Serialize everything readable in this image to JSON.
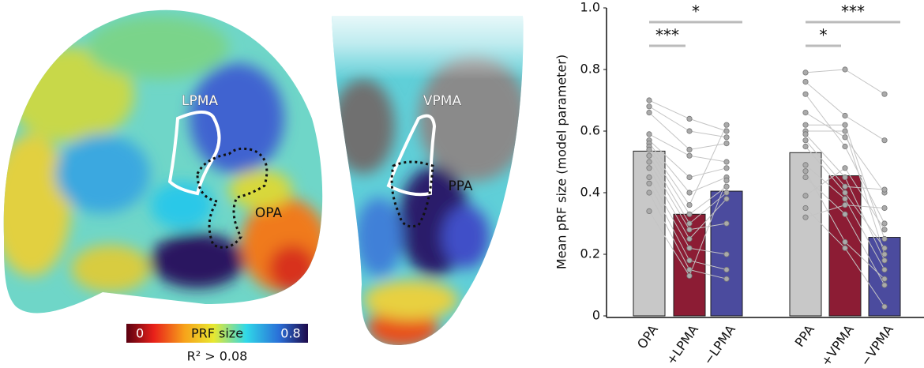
{
  "brain_maps": {
    "labels": {
      "left": [
        "LPMA",
        "OPA"
      ],
      "right": [
        "VPMA",
        "PPA"
      ]
    },
    "colorbar": {
      "title": "PRF size",
      "lim": [
        0,
        0.8
      ],
      "threshold": "R² > 0.08"
    }
  },
  "chart_data": {
    "type": "bar",
    "ylabel": "Mean pRF size (model parameter)",
    "ylim": [
      0,
      1
    ],
    "yticks": [
      0,
      0.2,
      0.4,
      0.6,
      0.8,
      {
        "value": 1,
        "label": "1.0"
      }
    ],
    "colors": [
      "#c8c8c8",
      "#8c1c34",
      "#4b4b9e"
    ],
    "groups": [
      {
        "categories": [
          "OPA",
          "+LPMA",
          "−LPMA"
        ],
        "values": [
          0.535,
          0.33,
          0.405
        ],
        "significance": [
          "*",
          "***"
        ],
        "points": [
          [
            0.7,
            0.68,
            0.66,
            0.59,
            0.57,
            0.56,
            0.55,
            0.54,
            0.52,
            0.5,
            0.48,
            0.45,
            0.43,
            0.4,
            0.34
          ],
          [
            0.64,
            0.6,
            0.54,
            0.52,
            0.45,
            0.4,
            0.36,
            0.33,
            0.3,
            0.28,
            0.25,
            0.22,
            0.18,
            0.15,
            0.13
          ],
          [
            0.6,
            0.58,
            0.56,
            0.5,
            0.48,
            0.45,
            0.62,
            0.42,
            0.4,
            0.3,
            0.38,
            0.2,
            0.15,
            0.12,
            0.44
          ]
        ]
      },
      {
        "categories": [
          "PPA",
          "+VPMA",
          "−VPMA"
        ],
        "values": [
          0.53,
          0.455,
          0.255
        ],
        "significance": [
          "***",
          "*"
        ],
        "points": [
          [
            0.79,
            0.76,
            0.72,
            0.66,
            0.62,
            0.6,
            0.59,
            0.57,
            0.55,
            0.49,
            0.47,
            0.45,
            0.39,
            0.35,
            0.32
          ],
          [
            0.8,
            0.65,
            0.55,
            0.58,
            0.62,
            0.6,
            0.45,
            0.42,
            0.4,
            0.38,
            0.24,
            0.33,
            0.48,
            0.22,
            0.36
          ],
          [
            0.72,
            0.57,
            0.3,
            0.4,
            0.25,
            0.2,
            0.18,
            0.41,
            0.22,
            0.15,
            0.12,
            0.1,
            0.28,
            0.03,
            0.35
          ]
        ]
      }
    ]
  }
}
